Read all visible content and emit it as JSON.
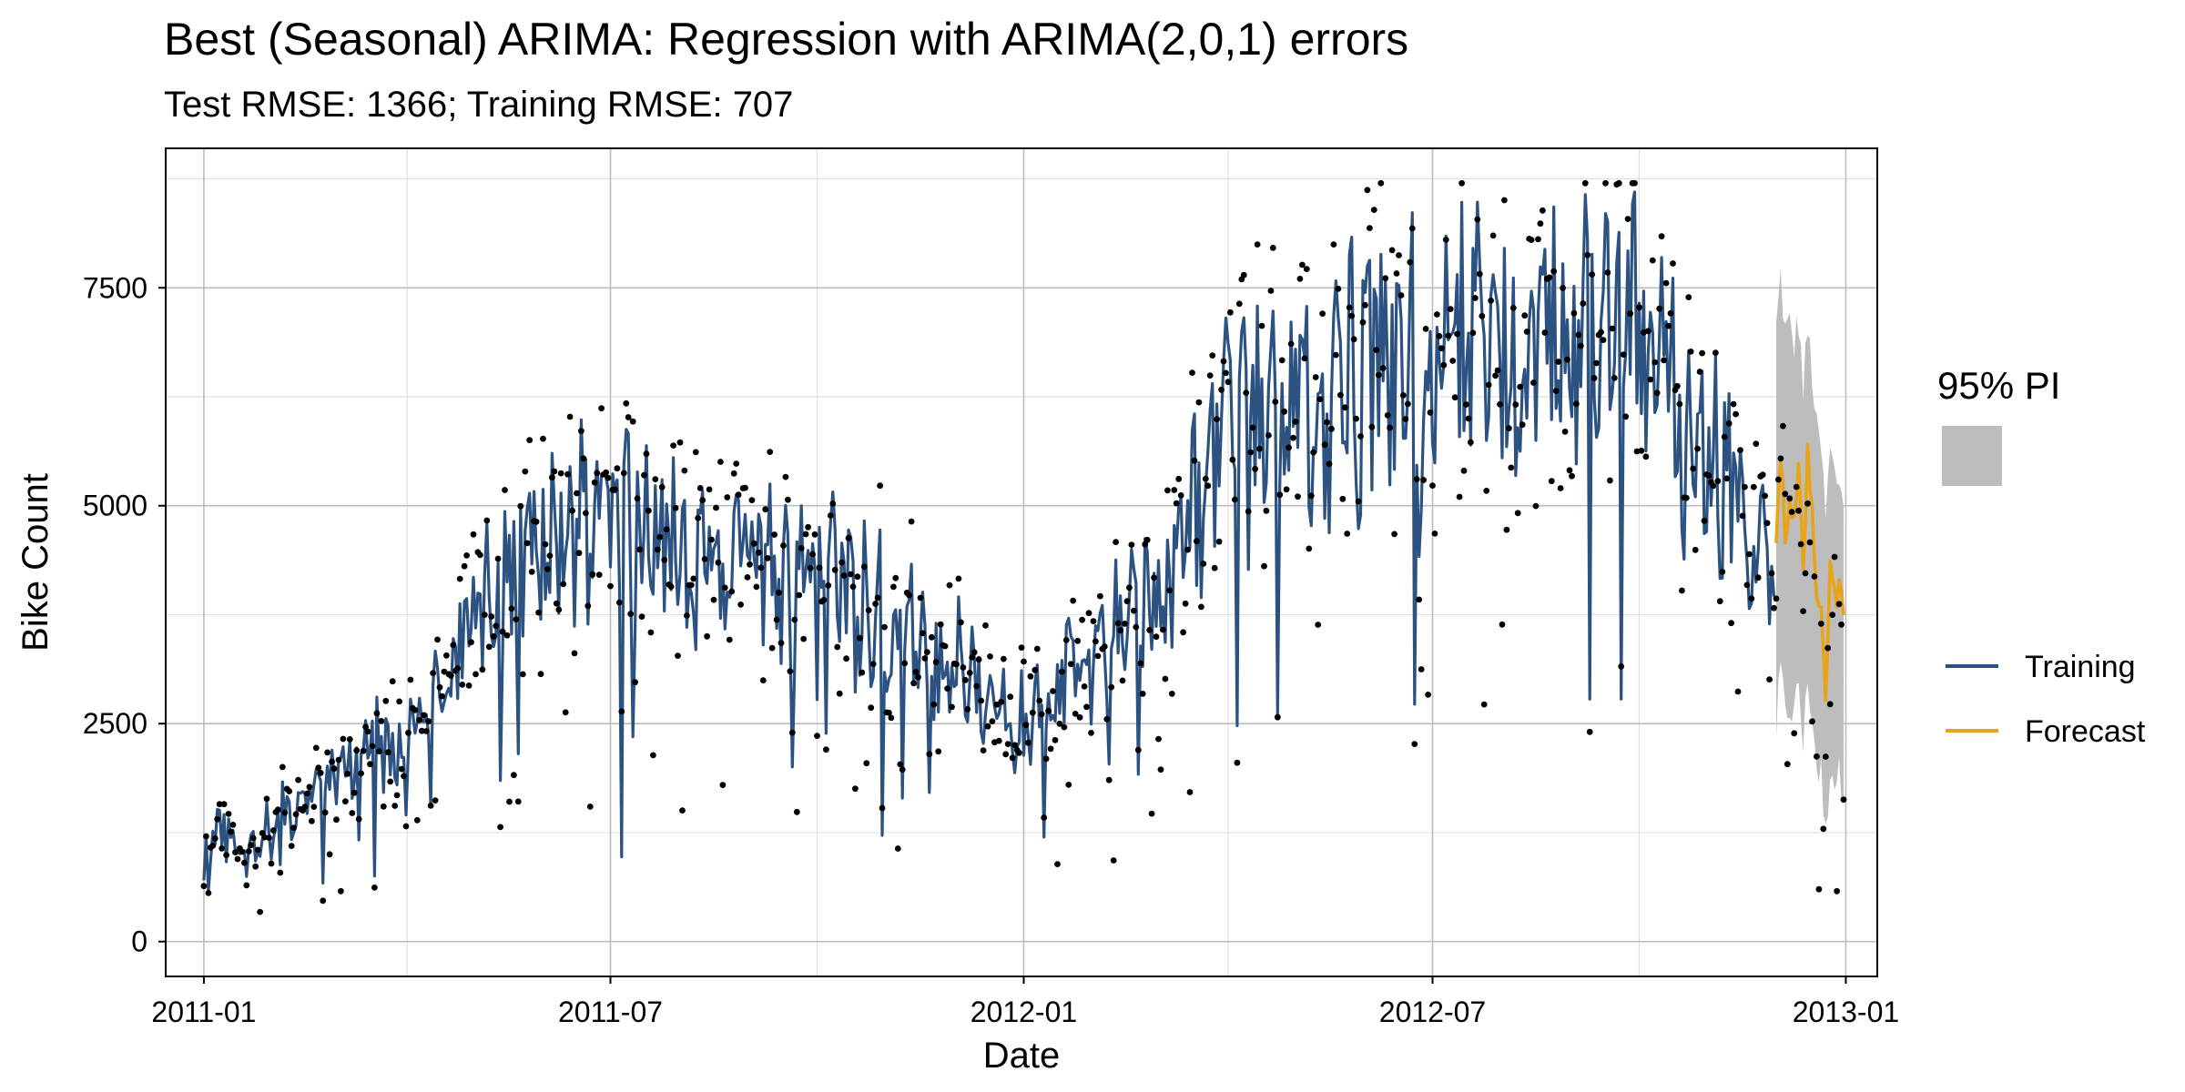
{
  "chart_data": {
    "type": "line",
    "title": "Best (Seasonal) ARIMA: Regression with ARIMA(2,0,1) errors",
    "subtitle": "Test RMSE: 1366; Training RMSE: 707",
    "xlabel": "Date",
    "ylabel": "Bike Count",
    "x_ticks": [
      "2011-01",
      "2011-07",
      "2012-01",
      "2012-07",
      "2013-01"
    ],
    "x_tick_dates": [
      "2011-01-01",
      "2011-07-01",
      "2012-01-01",
      "2012-07-01",
      "2013-01-01"
    ],
    "x_range": [
      "2010-12-15",
      "2013-01-15"
    ],
    "y_ticks": [
      0,
      2500,
      5000,
      7500
    ],
    "ylim": [
      -400,
      9100
    ],
    "grid": true,
    "legend": {
      "position": "right",
      "pi_title": "95% PI",
      "entries": [
        "Training",
        "Forecast"
      ]
    },
    "colors": {
      "training": "#2c5282",
      "forecast": "#e8a317",
      "actual": "#000000",
      "pi": "#bdbdbd",
      "grid_major": "#bcbcbc",
      "grid_minor": "#e0e0e0"
    },
    "series": [
      {
        "name": "Training",
        "points": [
          [
            "2011-01-01",
            1000
          ],
          [
            "2011-01-10",
            1300
          ],
          [
            "2011-01-20",
            900
          ],
          [
            "2011-02-01",
            1400
          ],
          [
            "2011-02-15",
            1600
          ],
          [
            "2011-03-01",
            1900
          ],
          [
            "2011-03-15",
            2200
          ],
          [
            "2011-04-01",
            2300
          ],
          [
            "2011-04-15",
            2800
          ],
          [
            "2011-05-01",
            3700
          ],
          [
            "2011-05-15",
            4300
          ],
          [
            "2011-06-01",
            4600
          ],
          [
            "2011-06-15",
            4700
          ],
          [
            "2011-07-01",
            4900
          ],
          [
            "2011-07-15",
            4700
          ],
          [
            "2011-08-01",
            4500
          ],
          [
            "2011-08-15",
            4300
          ],
          [
            "2011-09-01",
            4300
          ],
          [
            "2011-09-15",
            4000
          ],
          [
            "2011-10-01",
            4300
          ],
          [
            "2011-10-15",
            3900
          ],
          [
            "2011-11-01",
            3700
          ],
          [
            "2011-11-15",
            3400
          ],
          [
            "2011-12-01",
            3200
          ],
          [
            "2011-12-15",
            2900
          ],
          [
            "2012-01-01",
            2500
          ],
          [
            "2012-01-15",
            2900
          ],
          [
            "2012-02-01",
            3300
          ],
          [
            "2012-02-15",
            3500
          ],
          [
            "2012-03-01",
            3900
          ],
          [
            "2012-03-15",
            4800
          ],
          [
            "2012-04-01",
            5700
          ],
          [
            "2012-04-15",
            5900
          ],
          [
            "2012-05-01",
            6000
          ],
          [
            "2012-05-15",
            6300
          ],
          [
            "2012-06-01",
            6600
          ],
          [
            "2012-06-15",
            6700
          ],
          [
            "2012-07-01",
            6600
          ],
          [
            "2012-07-15",
            6700
          ],
          [
            "2012-08-01",
            6700
          ],
          [
            "2012-08-15",
            6800
          ],
          [
            "2012-09-01",
            7000
          ],
          [
            "2012-09-15",
            7200
          ],
          [
            "2012-10-01",
            7000
          ],
          [
            "2012-10-15",
            6800
          ],
          [
            "2012-11-01",
            5600
          ],
          [
            "2012-11-15",
            5000
          ],
          [
            "2012-11-30",
            4400
          ]
        ]
      },
      {
        "name": "Forecast",
        "points": [
          [
            "2012-12-01",
            4400
          ],
          [
            "2012-12-03",
            5600
          ],
          [
            "2012-12-05",
            4700
          ],
          [
            "2012-12-07",
            5000
          ],
          [
            "2012-12-09",
            4800
          ],
          [
            "2012-12-11",
            5500
          ],
          [
            "2012-12-13",
            4300
          ],
          [
            "2012-12-15",
            5600
          ],
          [
            "2012-12-17",
            5000
          ],
          [
            "2012-12-19",
            4000
          ],
          [
            "2012-12-21",
            3900
          ],
          [
            "2012-12-23",
            2700
          ],
          [
            "2012-12-25",
            4200
          ],
          [
            "2012-12-27",
            3900
          ],
          [
            "2012-12-29",
            4000
          ],
          [
            "2012-12-31",
            3900
          ]
        ]
      }
    ],
    "prediction_interval": {
      "start": "2012-12-01",
      "end": "2012-12-31",
      "upper_start": 7200,
      "lower_start": 2600,
      "upper_end": 5600,
      "lower_end": 2300
    }
  }
}
